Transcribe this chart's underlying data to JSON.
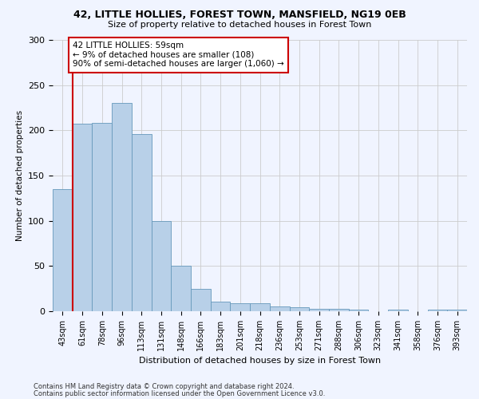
{
  "title1": "42, LITTLE HOLLIES, FOREST TOWN, MANSFIELD, NG19 0EB",
  "title2": "Size of property relative to detached houses in Forest Town",
  "xlabel": "Distribution of detached houses by size in Forest Town",
  "ylabel": "Number of detached properties",
  "categories": [
    "43sqm",
    "61sqm",
    "78sqm",
    "96sqm",
    "113sqm",
    "131sqm",
    "148sqm",
    "166sqm",
    "183sqm",
    "201sqm",
    "218sqm",
    "236sqm",
    "253sqm",
    "271sqm",
    "288sqm",
    "306sqm",
    "323sqm",
    "341sqm",
    "358sqm",
    "376sqm",
    "393sqm"
  ],
  "values": [
    135,
    207,
    208,
    230,
    196,
    100,
    50,
    25,
    11,
    9,
    9,
    5,
    4,
    3,
    3,
    2,
    0,
    2,
    0,
    2,
    2
  ],
  "bar_color": "#b8d0e8",
  "bar_edge_color": "#6699bb",
  "annotation_line1": "42 LITTLE HOLLIES: 59sqm",
  "annotation_line2": "← 9% of detached houses are smaller (108)",
  "annotation_line3": "90% of semi-detached houses are larger (1,060) →",
  "annotation_box_facecolor": "#ffffff",
  "annotation_box_edgecolor": "#cc0000",
  "property_line_color": "#cc0000",
  "footer1": "Contains HM Land Registry data © Crown copyright and database right 2024.",
  "footer2": "Contains public sector information licensed under the Open Government Licence v3.0.",
  "bg_color": "#f0f4ff",
  "grid_color": "#cccccc",
  "ylim_max": 300,
  "yticks": [
    0,
    50,
    100,
    150,
    200,
    250,
    300
  ],
  "property_line_x": 0.5,
  "title1_fontsize": 9,
  "title2_fontsize": 8,
  "ylabel_fontsize": 7.5,
  "xlabel_fontsize": 8,
  "tick_fontsize": 7,
  "footer_fontsize": 6
}
